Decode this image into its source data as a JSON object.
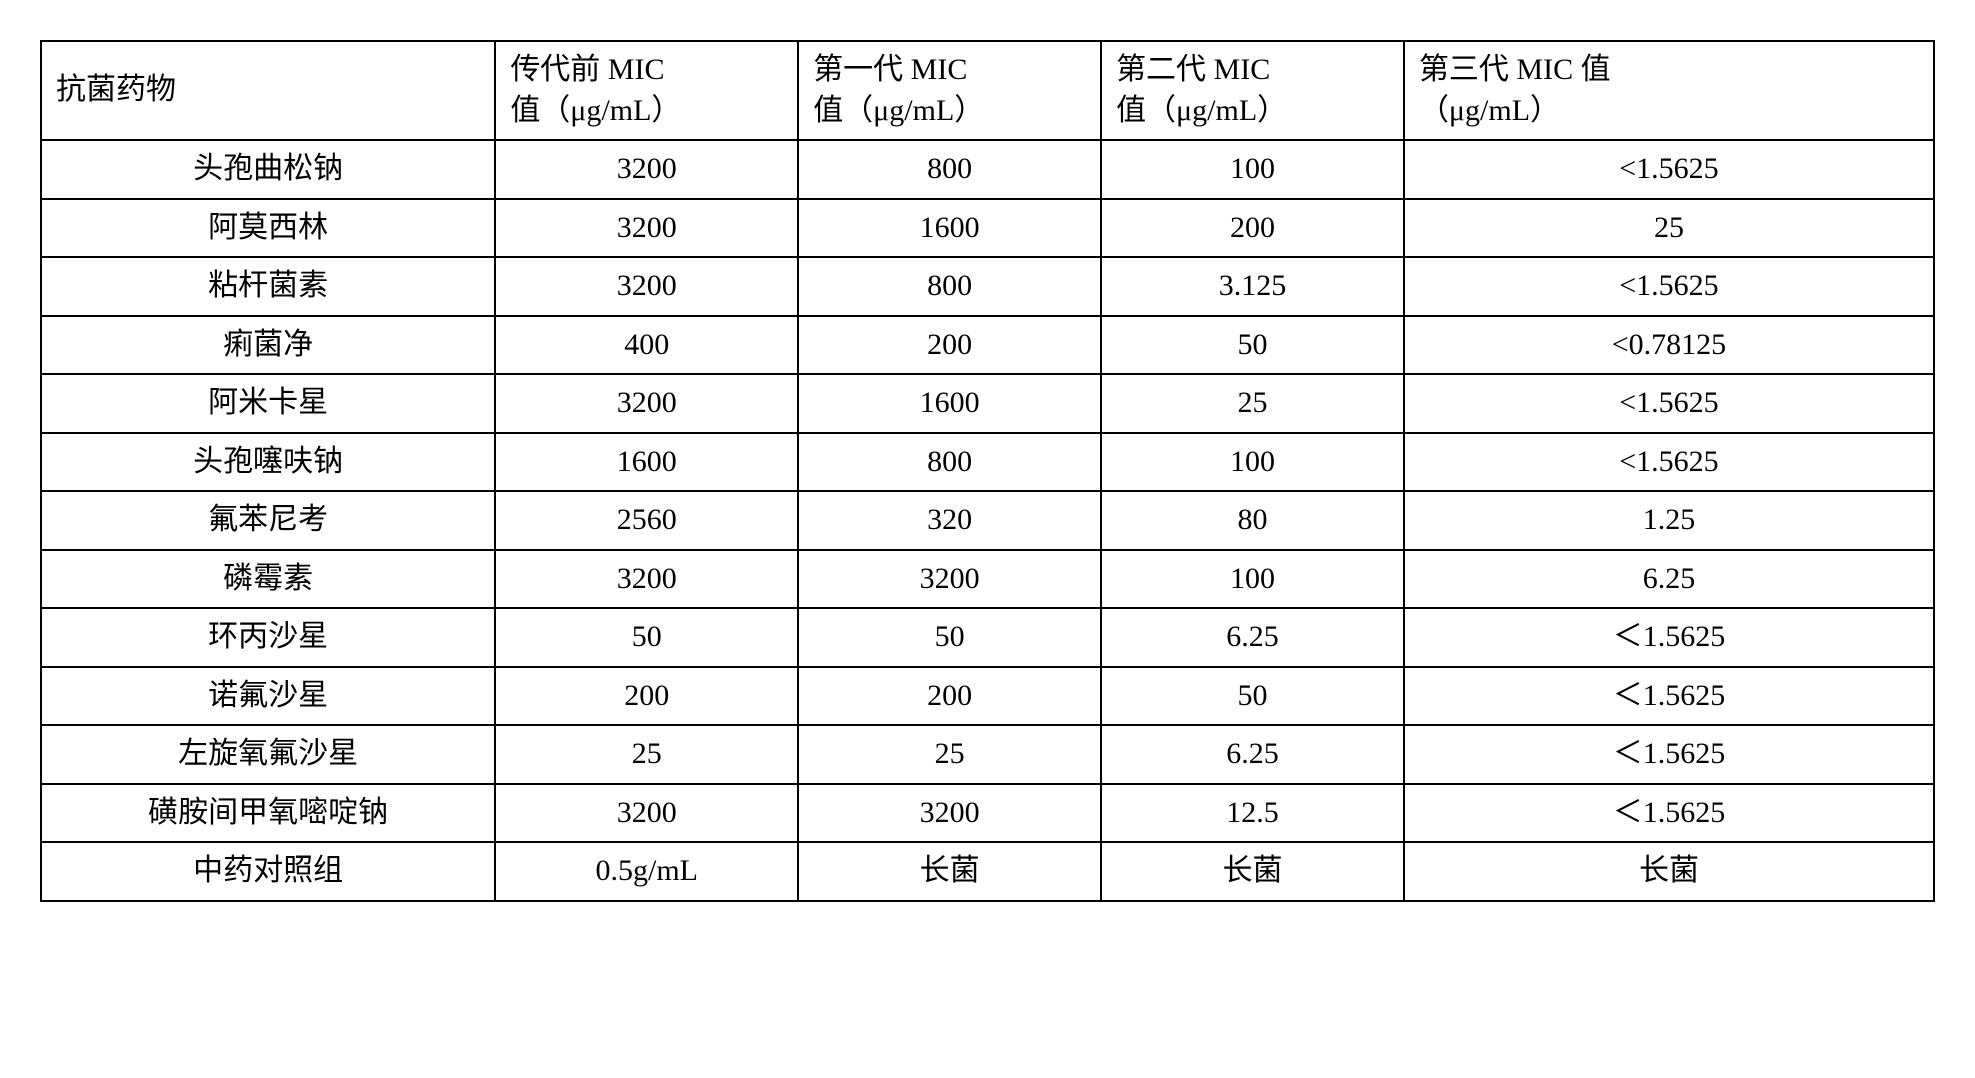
{
  "table": {
    "columns": [
      {
        "line1": "抗菌药物",
        "line2": ""
      },
      {
        "line1": "传代前 MIC",
        "line2": "值（μg/mL）"
      },
      {
        "line1": "第一代 MIC",
        "line2": "值（μg/mL）"
      },
      {
        "line1": "第二代 MIC",
        "line2": "值（μg/mL）"
      },
      {
        "line1": "第三代 MIC 值",
        "line2": "（μg/mL）"
      }
    ],
    "rows": [
      {
        "name": "头孢曲松钠",
        "v0": "3200",
        "v1": "800",
        "v2": "100",
        "v3": "<1.5625"
      },
      {
        "name": "阿莫西林",
        "v0": "3200",
        "v1": "1600",
        "v2": "200",
        "v3": "25"
      },
      {
        "name": "粘杆菌素",
        "v0": "3200",
        "v1": "800",
        "v2": "3.125",
        "v3": "<1.5625"
      },
      {
        "name": "痢菌净",
        "v0": "400",
        "v1": "200",
        "v2": "50",
        "v3": "<0.78125"
      },
      {
        "name": "阿米卡星",
        "v0": "3200",
        "v1": "1600",
        "v2": "25",
        "v3": "<1.5625"
      },
      {
        "name": "头孢噻呋钠",
        "v0": "1600",
        "v1": "800",
        "v2": "100",
        "v3": "<1.5625"
      },
      {
        "name": "氟苯尼考",
        "v0": "2560",
        "v1": "320",
        "v2": "80",
        "v3": "1.25"
      },
      {
        "name": "磷霉素",
        "v0": "3200",
        "v1": "3200",
        "v2": "100",
        "v3": "6.25"
      },
      {
        "name": "环丙沙星",
        "v0": "50",
        "v1": "50",
        "v2": "6.25",
        "v3": "＜1.5625"
      },
      {
        "name": "诺氟沙星",
        "v0": "200",
        "v1": "200",
        "v2": "50",
        "v3": "＜1.5625"
      },
      {
        "name": "左旋氧氟沙星",
        "v0": "25",
        "v1": "25",
        "v2": "6.25",
        "v3": "＜1.5625"
      },
      {
        "name": "磺胺间甲氧嘧啶钠",
        "v0": "3200",
        "v1": "3200",
        "v2": "12.5",
        "v3": "＜1.5625"
      },
      {
        "name": "中药对照组",
        "v0": "0.5g/mL",
        "v1": "长菌",
        "v2": "长菌",
        "v3": "长菌"
      }
    ],
    "border_color": "#000000",
    "background_color": "#ffffff",
    "font_size_pt": 22,
    "font_family": "SimSun / Times"
  }
}
